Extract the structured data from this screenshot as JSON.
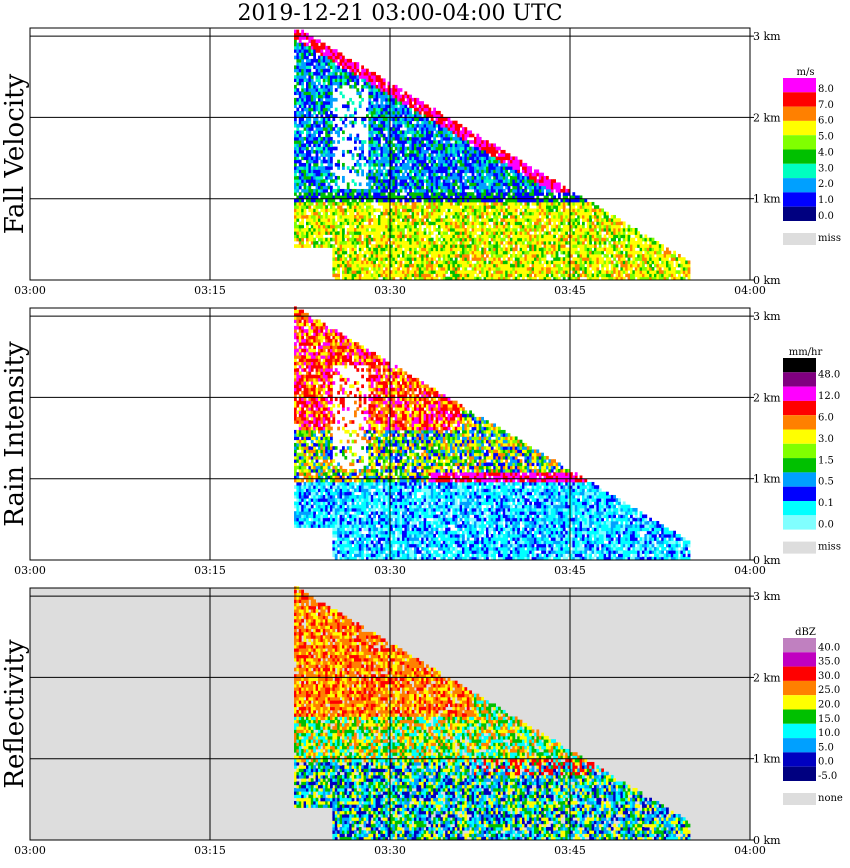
{
  "title": "2019-12-21   03:00-04:00 UTC",
  "chart_data": [
    {
      "type": "heatmap",
      "panel": "Fall Velocity",
      "title": "Fall Velocity",
      "x_ticks": [
        "03:00",
        "03:15",
        "03:30",
        "03:45",
        "04:00"
      ],
      "y_ticks": [
        "0 km",
        "1 km",
        "2 km",
        "3 km"
      ],
      "xlim": [
        "03:00",
        "04:00"
      ],
      "ylim_km": [
        0,
        3.1
      ],
      "grid": true,
      "legend": {
        "unit": "m/s",
        "labels": [
          "8.0",
          "7.0",
          "6.0",
          "5.0",
          "4.0",
          "3.0",
          "2.0",
          "1.0",
          "0.0"
        ],
        "colors": [
          "#ff00ff",
          "#ff0000",
          "#ff8000",
          "#ffff00",
          "#80ff00",
          "#00c000",
          "#00ffc0",
          "#00a0ff",
          "#0000ff",
          "#000080"
        ],
        "missing_label": "miss",
        "missing_color": "#dddddd"
      },
      "echo_extent": {
        "start": "03:22",
        "end": "03:55",
        "top_km_start": 3.1,
        "top_km_end": 0.2
      },
      "layers": [
        {
          "label": "lower layer (below 1 km)",
          "dominant_value_ms": "5.0-7.0"
        },
        {
          "label": "upper layer (above 1 km)",
          "dominant_value_ms": "1.0-3.0"
        }
      ]
    },
    {
      "type": "heatmap",
      "panel": "Rain Intensity",
      "title": "Rain Intensity",
      "x_ticks": [
        "03:00",
        "03:15",
        "03:30",
        "03:45",
        "04:00"
      ],
      "y_ticks": [
        "0 km",
        "1 km",
        "2 km",
        "3 km"
      ],
      "xlim": [
        "03:00",
        "04:00"
      ],
      "ylim_km": [
        0,
        3.1
      ],
      "grid": true,
      "legend": {
        "unit": "mm/hr",
        "labels": [
          "48.0",
          "12.0",
          "6.0",
          "3.0",
          "1.5",
          "0.5",
          "0.1",
          "0.0"
        ],
        "colors": [
          "#000000",
          "#800080",
          "#ff00ff",
          "#ff0000",
          "#ff8000",
          "#ffff00",
          "#80ff00",
          "#00c000",
          "#00a0ff",
          "#0000ff",
          "#00ffff",
          "#80ffff"
        ],
        "missing_label": "miss",
        "missing_color": "#dddddd"
      },
      "echo_extent": {
        "start": "03:22",
        "end": "03:55",
        "top_km_start": 3.1,
        "top_km_end": 0.2
      },
      "layers": [
        {
          "label": "bright band near 1 km",
          "dominant_value_mmhr": "3.0-12.0"
        },
        {
          "label": "upper core 03:25-03:35",
          "dominant_value_mmhr": "6.0-12.0"
        },
        {
          "label": "below 1 km",
          "dominant_value_mmhr": "0.1-0.5"
        }
      ]
    },
    {
      "type": "heatmap",
      "panel": "Reflectivity",
      "title": "Reflectivity",
      "x_ticks": [
        "03:00",
        "03:15",
        "03:30",
        "03:45",
        "04:00"
      ],
      "y_ticks": [
        "0 km",
        "1 km",
        "2 km",
        "3 km"
      ],
      "xlim": [
        "03:00",
        "04:00"
      ],
      "ylim_km": [
        0,
        3.1
      ],
      "grid": true,
      "legend": {
        "unit": "dBZ",
        "labels": [
          "40.0",
          "35.0",
          "30.0",
          "25.0",
          "20.0",
          "15.0",
          "10.0",
          "5.0",
          "0.0",
          "-5.0"
        ],
        "colors": [
          "#c080c0",
          "#c000c0",
          "#ff0000",
          "#ff8000",
          "#ffff00",
          "#00c000",
          "#00ffff",
          "#00a0ff",
          "#0000c0",
          "#000080"
        ],
        "missing_label": "none",
        "missing_color": "#dddddd"
      },
      "echo_extent": {
        "start": "03:22",
        "end": "03:55",
        "top_km_start": 3.1,
        "top_km_end": 0.2
      },
      "layers": [
        {
          "label": "upper core 03:27-03:35",
          "dominant_value_dbz": "20.0-30.0"
        },
        {
          "label": "below 1 km",
          "dominant_value_dbz": "10.0-25.0"
        }
      ]
    }
  ]
}
